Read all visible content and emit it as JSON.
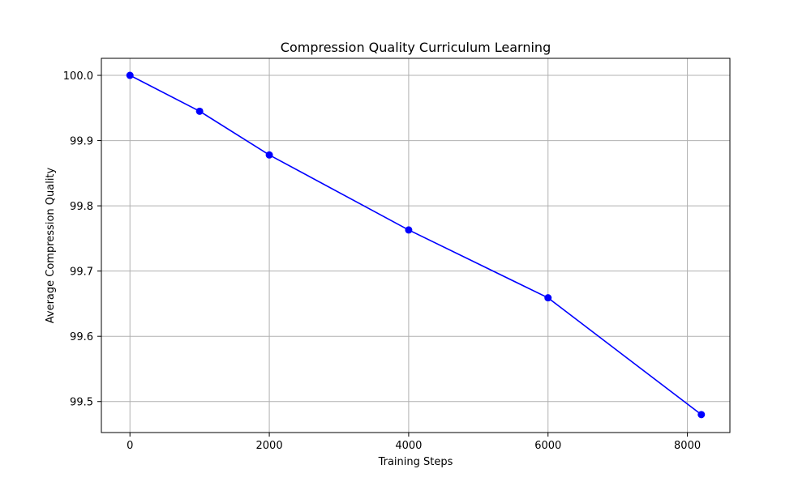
{
  "chart_data": {
    "type": "line",
    "title": "Compression Quality Curriculum Learning",
    "xlabel": "Training Steps",
    "ylabel": "Average Compression Quality",
    "xlim": [
      -410,
      8610
    ],
    "ylim": [
      99.4525,
      100.0261
    ],
    "x_ticks": [
      0,
      2000,
      4000,
      6000,
      8000
    ],
    "x_tick_labels": [
      "0",
      "2000",
      "4000",
      "6000",
      "8000"
    ],
    "y_ticks": [
      99.5,
      99.6,
      99.7,
      99.8,
      99.9,
      100.0
    ],
    "y_tick_labels": [
      "99.5",
      "99.6",
      "99.7",
      "99.8",
      "99.9",
      "100.0"
    ],
    "grid": true,
    "series": [
      {
        "color": "#0000ff",
        "marker": "circle",
        "x": [
          0,
          1000,
          2000,
          4000,
          6000,
          8200
        ],
        "y": [
          100.0,
          99.945,
          99.878,
          99.763,
          99.659,
          99.48
        ]
      }
    ]
  }
}
